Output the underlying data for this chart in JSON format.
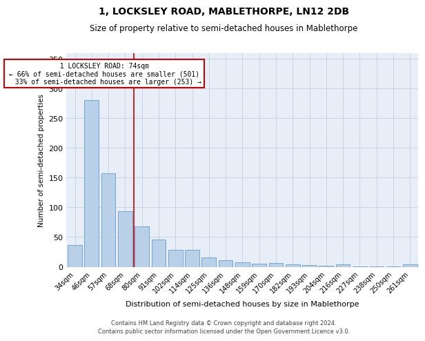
{
  "title": "1, LOCKSLEY ROAD, MABLETHORPE, LN12 2DB",
  "subtitle": "Size of property relative to semi-detached houses in Mablethorpe",
  "xlabel": "Distribution of semi-detached houses by size in Mablethorpe",
  "ylabel": "Number of semi-detached properties",
  "categories": [
    "34sqm",
    "46sqm",
    "57sqm",
    "68sqm",
    "80sqm",
    "91sqm",
    "102sqm",
    "114sqm",
    "125sqm",
    "136sqm",
    "148sqm",
    "159sqm",
    "170sqm",
    "182sqm",
    "193sqm",
    "204sqm",
    "216sqm",
    "227sqm",
    "238sqm",
    "250sqm",
    "261sqm"
  ],
  "values": [
    37,
    281,
    157,
    93,
    68,
    46,
    29,
    29,
    16,
    11,
    7,
    5,
    6,
    4,
    3,
    2,
    4,
    1,
    1,
    1,
    4
  ],
  "bar_color": "#b8d0e8",
  "bar_edge_color": "#6699cc",
  "property_line_x": 3.5,
  "property_label": "1 LOCKSLEY ROAD: 74sqm",
  "pct_smaller": "66% of semi-detached houses are smaller (501)",
  "pct_larger": "33% of semi-detached houses are larger (253)",
  "annotation_box_color": "#ffffff",
  "annotation_box_edge": "#cc0000",
  "red_line_color": "#cc0000",
  "grid_color": "#c8d4e4",
  "background_color": "#e8eef8",
  "footer_line1": "Contains HM Land Registry data © Crown copyright and database right 2024.",
  "footer_line2": "Contains public sector information licensed under the Open Government Licence v3.0.",
  "ylim": [
    0,
    360
  ],
  "yticks": [
    0,
    50,
    100,
    150,
    200,
    250,
    300,
    350
  ]
}
